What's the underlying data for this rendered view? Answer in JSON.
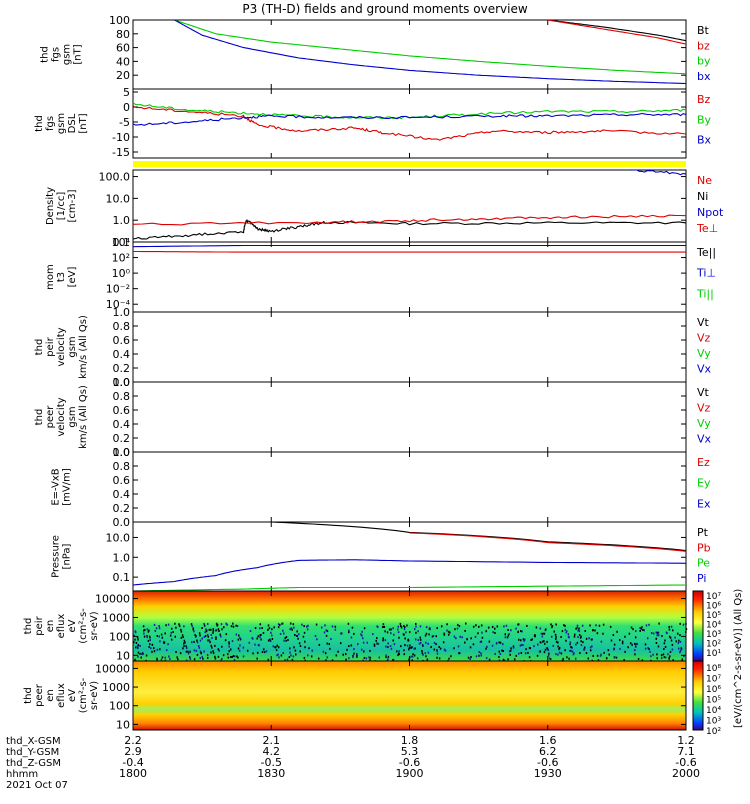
{
  "title": "P3 (TH-D) fields and ground moments overview",
  "bottom_rows": [
    "thd_X-GSM",
    "thd_Y-GSM",
    "thd_Z-GSM",
    "hhmm",
    "2021 Oct 07"
  ],
  "x_axis": {
    "ticks": [
      "1800",
      "1830",
      "1900",
      "1930",
      "2000"
    ],
    "tick_hours": [
      18.0,
      18.5,
      19.0,
      19.5,
      20.0
    ],
    "xlim": [
      18.0,
      20.0
    ],
    "X_GSM": [
      "2.2",
      "2.1",
      "1.8",
      "1.6",
      "1.2"
    ],
    "Y_GSM": [
      "2.9",
      "4.2",
      "5.3",
      "6.2",
      "7.1"
    ],
    "Z_GSM": [
      "-0.4",
      "-0.5",
      "-0.6",
      "-0.6",
      "-0.6"
    ]
  },
  "colorbar_label": "[eV/(cm^2-s-sr-eV)] (All Qs)",
  "colorbar_ticks": [
    "10⁷",
    "10⁶",
    "10⁵",
    "10⁴",
    "10³",
    "10²",
    "10¹",
    "10⁸",
    "10⁷",
    "10⁶",
    "10⁵",
    "10⁴",
    "10³",
    "10²"
  ],
  "chart_data": [
    {
      "type": "line",
      "ylabel": [
        "thd",
        "fgs",
        "gsm",
        "[nT]"
      ],
      "ylim": [
        0,
        100
      ],
      "yticks": [
        "100",
        "80",
        "60",
        "40",
        "20"
      ],
      "legend": [
        {
          "name": "Bt",
          "color": "#000000"
        },
        {
          "name": "bz",
          "color": "#dd0000"
        },
        {
          "name": "by",
          "color": "#00cc00"
        },
        {
          "name": "bx",
          "color": "#0000cc"
        }
      ],
      "series": [
        {
          "name": "Bt",
          "color": "#000000",
          "x": [
            19.5,
            19.7,
            19.9,
            20.0
          ],
          "y": [
            100,
            90,
            78,
            70
          ]
        },
        {
          "name": "bz",
          "color": "#dd0000",
          "x": [
            19.5,
            19.7,
            19.9,
            20.0
          ],
          "y": [
            100,
            87,
            74,
            65
          ]
        },
        {
          "name": "by",
          "color": "#00cc00",
          "x": [
            18.15,
            18.3,
            18.5,
            18.75,
            19.0,
            19.25,
            19.5,
            19.75,
            20.0
          ],
          "y": [
            100,
            80,
            68,
            58,
            48,
            40,
            33,
            27,
            22
          ]
        },
        {
          "name": "bx",
          "color": "#0000cc",
          "x": [
            18.15,
            18.25,
            18.4,
            18.6,
            18.8,
            19.0,
            19.25,
            19.5,
            19.75,
            20.0
          ],
          "y": [
            100,
            78,
            60,
            45,
            35,
            27,
            20,
            15,
            11,
            8
          ]
        }
      ]
    },
    {
      "type": "line",
      "ylabel": [
        "thd",
        "fgs",
        "gsm",
        "DSL",
        "[nT]"
      ],
      "ylim": [
        -17,
        6
      ],
      "yticks": [
        "5",
        "0",
        "-5",
        "-10",
        "-15"
      ],
      "legend": [
        {
          "name": "Bz",
          "color": "#dd0000"
        },
        {
          "name": "By",
          "color": "#00cc00"
        },
        {
          "name": "Bx",
          "color": "#0000cc"
        }
      ],
      "series": [
        {
          "name": "Bz",
          "color": "#dd0000",
          "x": [
            18.0,
            18.2,
            18.4,
            18.45,
            18.6,
            18.8,
            18.9,
            19.1,
            19.3,
            19.5,
            19.7,
            20.0
          ],
          "y": [
            0,
            -1.5,
            -3,
            -6,
            -8,
            -7,
            -8.5,
            -11,
            -8,
            -8.5,
            -8,
            -9
          ]
        },
        {
          "name": "By",
          "color": "#00cc00",
          "x": [
            18.0,
            18.2,
            18.4,
            18.6,
            18.8,
            19.0,
            19.2,
            19.5,
            19.8,
            20.0
          ],
          "y": [
            1,
            -1,
            -2,
            -3,
            -3.5,
            -3.5,
            -2.5,
            -1.5,
            -1.5,
            -1
          ]
        },
        {
          "name": "Bx",
          "color": "#0000cc",
          "x": [
            18.0,
            18.2,
            18.4,
            18.5,
            18.7,
            19.0,
            19.3,
            19.5,
            19.8,
            20.0
          ],
          "y": [
            -6,
            -5,
            -3.5,
            -3,
            -3.5,
            -3.5,
            -3,
            -3,
            -2.5,
            -2.5
          ]
        }
      ]
    },
    {
      "type": "line",
      "ylabel": [
        "Density",
        "[1/cc]",
        "[cm-3]"
      ],
      "scale": "log",
      "ylim": [
        0.1,
        200
      ],
      "yticks": [
        "100.0",
        "10.0",
        "1.0",
        "0.1"
      ],
      "legend": [
        {
          "name": "Ne",
          "color": "#dd0000"
        },
        {
          "name": "Ni",
          "color": "#000000"
        },
        {
          "name": "Npot",
          "color": "#0000cc"
        },
        {
          "name": "Te⊥",
          "color": "#dd0000"
        }
      ],
      "series": [
        {
          "name": "Ni",
          "color": "#000000",
          "x": [
            18.0,
            18.2,
            18.4,
            18.41,
            18.45,
            18.5,
            18.6,
            18.7,
            19.0,
            19.5,
            20.0
          ],
          "y": [
            0.14,
            0.2,
            0.3,
            1.0,
            0.4,
            0.3,
            0.5,
            0.8,
            0.7,
            0.75,
            0.75
          ]
        },
        {
          "name": "Ne",
          "color": "#dd0000",
          "x": [
            18.0,
            18.7,
            19.0,
            19.3,
            19.6,
            20.0
          ],
          "y": [
            0.65,
            0.8,
            0.95,
            1.2,
            1.4,
            1.6
          ]
        },
        {
          "name": "Npot",
          "color": "#0000cc",
          "x": [
            19.8,
            20.0
          ],
          "y": [
            200,
            130
          ]
        }
      ]
    },
    {
      "type": "line",
      "ylabel": [
        "mom",
        "t3",
        "[eV]"
      ],
      "scale": "log",
      "ylim": [
        1e-05,
        10000.0
      ],
      "yticks": [
        "10⁴",
        "10²",
        "10⁰",
        "10⁻²",
        "10⁻⁴"
      ],
      "legend": [
        {
          "name": "Te||",
          "color": "#000000"
        },
        {
          "name": "Ti⊥",
          "color": "#0000cc"
        },
        {
          "name": "Ti||",
          "color": "#00cc00"
        }
      ],
      "series": [
        {
          "name": "Ti",
          "color": "#0000cc",
          "x": [
            18.0,
            18.4,
            19.0,
            20.0
          ],
          "y": [
            2500,
            3500,
            3500,
            3500
          ]
        },
        {
          "name": "Te",
          "color": "#dd0000",
          "x": [
            18.0,
            18.4,
            19.0,
            20.0
          ],
          "y": [
            600,
            500,
            500,
            500
          ]
        }
      ]
    },
    {
      "type": "line",
      "ylabel": [
        "thd",
        "peir",
        "velocity",
        "gsm",
        "km/s (All Qs)"
      ],
      "ylim": [
        0,
        1
      ],
      "yticks": [
        "1.0",
        "0.8",
        "0.6",
        "0.4",
        "0.2",
        "0.0"
      ],
      "legend": [
        {
          "name": "Vt",
          "color": "#000000"
        },
        {
          "name": "Vz",
          "color": "#dd0000"
        },
        {
          "name": "Vy",
          "color": "#00cc00"
        },
        {
          "name": "Vx",
          "color": "#0000cc"
        }
      ],
      "series": []
    },
    {
      "type": "line",
      "ylabel": [
        "thd",
        "peer",
        "velocity",
        "gsm",
        "km/s (All Qs)"
      ],
      "ylim": [
        0,
        1
      ],
      "yticks": [
        "1.0",
        "0.8",
        "0.6",
        "0.4",
        "0.2",
        "0.0"
      ],
      "legend": [
        {
          "name": "Vt",
          "color": "#000000"
        },
        {
          "name": "Vz",
          "color": "#dd0000"
        },
        {
          "name": "Vy",
          "color": "#00cc00"
        },
        {
          "name": "Vx",
          "color": "#0000cc"
        }
      ],
      "series": []
    },
    {
      "type": "line",
      "ylabel": [
        "E=-VxB",
        "[mV/m]"
      ],
      "ylim": [
        0,
        1
      ],
      "yticks": [
        "1.0",
        "0.8",
        "0.6",
        "0.4",
        "0.2",
        "0.0"
      ],
      "legend": [
        {
          "name": "Ez",
          "color": "#dd0000"
        },
        {
          "name": "Ey",
          "color": "#00cc00"
        },
        {
          "name": "Ex",
          "color": "#0000cc"
        }
      ],
      "series": []
    },
    {
      "type": "line",
      "ylabel": [
        "Pressure",
        "[nPa]"
      ],
      "scale": "log",
      "ylim": [
        0.02,
        60
      ],
      "yticks": [
        "10.0",
        "1.0",
        "0.1"
      ],
      "legend": [
        {
          "name": "Pt",
          "color": "#000000"
        },
        {
          "name": "Pb",
          "color": "#dd0000"
        },
        {
          "name": "Pe",
          "color": "#00cc00"
        },
        {
          "name": "Pi",
          "color": "#0000cc"
        }
      ],
      "series": [
        {
          "name": "Pt",
          "color": "#000000",
          "x": [
            18.5,
            19.0,
            19.5,
            20.0
          ],
          "y": [
            60,
            18,
            6,
            2.2
          ]
        },
        {
          "name": "Pb",
          "color": "#dd0000",
          "x": [
            19.0,
            19.5,
            20.0
          ],
          "y": [
            17,
            5.5,
            2.0
          ]
        },
        {
          "name": "Pi",
          "color": "#0000cc",
          "x": [
            18.0,
            18.15,
            18.3,
            18.45,
            18.6,
            18.8,
            19.0,
            19.5,
            20.0
          ],
          "y": [
            0.04,
            0.06,
            0.12,
            0.3,
            0.7,
            0.75,
            0.65,
            0.55,
            0.5
          ]
        },
        {
          "name": "Pe",
          "color": "#00cc00",
          "x": [
            18.0,
            18.4,
            18.6,
            19.0,
            19.5,
            20.0
          ],
          "y": [
            0.02,
            0.025,
            0.03,
            0.03,
            0.035,
            0.04
          ]
        }
      ]
    },
    {
      "type": "heatmap",
      "ylabel": [
        "thd",
        "peir",
        "en",
        "eflux",
        "eV",
        "(cm²-s-",
        "sr-eV)"
      ],
      "scale": "log",
      "ylim": [
        5,
        25000
      ],
      "yticks": [
        "10000",
        "1000",
        "100",
        "10"
      ]
    },
    {
      "type": "heatmap",
      "ylabel": [
        "thd",
        "peer",
        "en",
        "eflux",
        "eV",
        "(cm²-s-",
        "sr-eV)"
      ],
      "scale": "log",
      "ylim": [
        5,
        25000
      ],
      "yticks": [
        "10000",
        "1000",
        "100",
        "10"
      ]
    }
  ]
}
